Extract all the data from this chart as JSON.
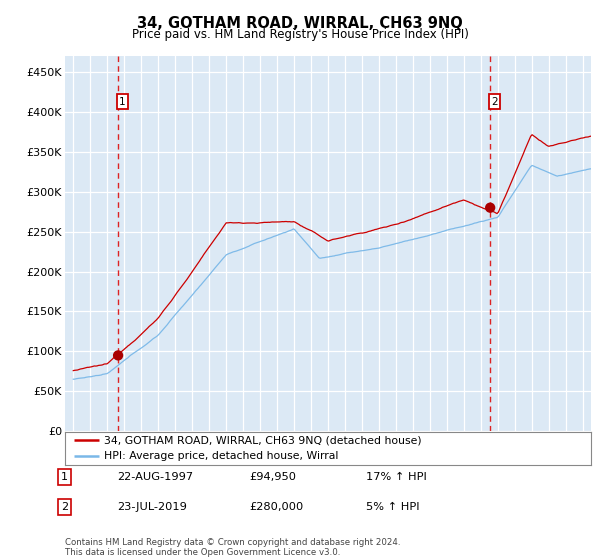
{
  "title": "34, GOTHAM ROAD, WIRRAL, CH63 9NQ",
  "subtitle": "Price paid vs. HM Land Registry's House Price Index (HPI)",
  "background_color": "#dce9f5",
  "sale1_date": 1997.64,
  "sale1_price": 94950,
  "sale1_label": "1",
  "sale2_date": 2019.56,
  "sale2_price": 280000,
  "sale2_label": "2",
  "hpi_line_color": "#7ab8e8",
  "price_line_color": "#cc0000",
  "sale_dot_color": "#aa0000",
  "vline_color": "#dd2222",
  "legend_entry1": "34, GOTHAM ROAD, WIRRAL, CH63 9NQ (detached house)",
  "legend_entry2": "HPI: Average price, detached house, Wirral",
  "note1_num": "1",
  "note1_date": "22-AUG-1997",
  "note1_price": "£94,950",
  "note1_hpi": "17% ↑ HPI",
  "note2_num": "2",
  "note2_date": "23-JUL-2019",
  "note2_price": "£280,000",
  "note2_hpi": "5% ↑ HPI",
  "footer": "Contains HM Land Registry data © Crown copyright and database right 2024.\nThis data is licensed under the Open Government Licence v3.0.",
  "ylim_min": 0,
  "ylim_max": 470000,
  "xmin": 1994.5,
  "xmax": 2025.5
}
